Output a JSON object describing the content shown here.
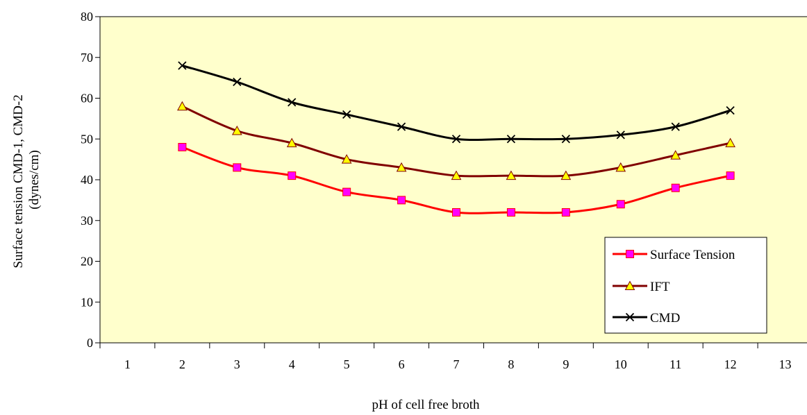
{
  "chart_data": {
    "type": "line",
    "title": "",
    "xlabel": "pH of cell free broth",
    "ylabel": [
      "Surface tension CMD-1, CMD-2",
      "(dynes/cm)"
    ],
    "xlim": [
      0.5,
      13.5
    ],
    "ylim": [
      0,
      80
    ],
    "x_ticks": [
      "1",
      "2",
      "3",
      "4",
      "5",
      "6",
      "7",
      "8",
      "9",
      "10",
      "11",
      "12",
      "13"
    ],
    "y_ticks": [
      "0",
      "10",
      "20",
      "30",
      "40",
      "50",
      "60",
      "70",
      "80"
    ],
    "grid": false,
    "plot_background": "#FFFFCC",
    "legend_position": "bottom-right",
    "x": [
      2,
      3,
      4,
      5,
      6,
      7,
      8,
      9,
      10,
      11,
      12
    ],
    "series": [
      {
        "name": "Surface Tension",
        "color": "#FF0000",
        "marker": "square",
        "marker_color": "#FF00FF",
        "values": [
          48,
          43,
          41,
          37,
          35,
          32,
          32,
          32,
          34,
          38,
          41
        ]
      },
      {
        "name": "IFT",
        "color": "#800000",
        "marker": "triangle",
        "marker_color": "#FFFF00",
        "values": [
          58,
          52,
          49,
          45,
          43,
          41,
          41,
          41,
          43,
          46,
          49
        ]
      },
      {
        "name": "CMD",
        "color": "#000000",
        "marker": "x",
        "marker_color": "#000000",
        "values": [
          68,
          64,
          59,
          56,
          53,
          50,
          50,
          50,
          51,
          53,
          57
        ]
      }
    ]
  }
}
